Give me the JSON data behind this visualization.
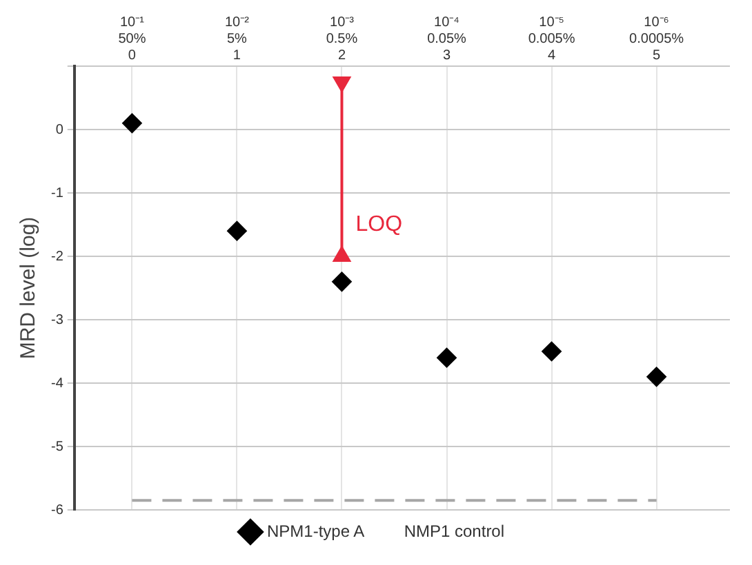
{
  "chart_data": {
    "type": "scatter",
    "ylabel": "MRD level (log)",
    "categories": [
      "10⁻¹\n50%\n0",
      "10⁻²\n5%\n1",
      "10⁻³\n0.5%\n2",
      "10⁻⁴\n0.05%\n3",
      "10⁻⁵\n0.005%\n4",
      "10⁻⁶\n0.0005%\n5"
    ],
    "ylim": [
      -6,
      1
    ],
    "yticks": [
      -6,
      -5,
      -4,
      -3,
      -2,
      -1,
      0,
      {
        "value": 1,
        "label": null
      }
    ],
    "grid": true,
    "legend": "bottom",
    "series": [
      {
        "name": "NPM1-type A",
        "type": "scatter",
        "color": "#000000",
        "marker": "diamond",
        "values": [
          0.1,
          -1.6,
          -2.4,
          -3.6,
          -3.5,
          -3.9
        ]
      },
      {
        "name": "NMP1 control",
        "type": "line",
        "color": "#a6a6a6",
        "marker": "none",
        "line_style": "dashed",
        "values": [
          -5.85,
          -5.85,
          -5.85,
          -5.85,
          -5.85,
          -5.85
        ]
      },
      {
        "type": "line",
        "color": "#e8283c",
        "marker": "triangle",
        "x": [
          "10⁻³\n0.5%\n2",
          "10⁻³\n0.5%\n2"
        ],
        "values": [
          0.75,
          -2
        ]
      }
    ],
    "annotations": [
      {
        "text": "LOQ",
        "x": "10⁻³\n0.5%\n2",
        "y": -1.5
      }
    ]
  }
}
